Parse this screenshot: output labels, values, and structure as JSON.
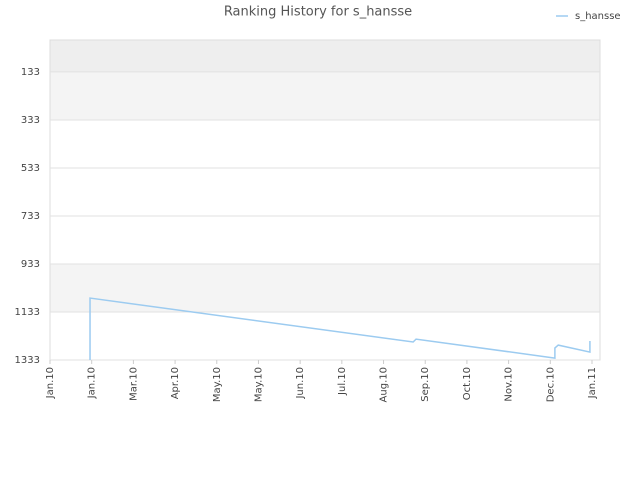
{
  "chart_data": {
    "type": "line",
    "title": "Ranking History for s_hansse",
    "x": [
      0.96,
      0.96,
      8.71,
      8.78,
      12.11,
      12.11,
      12.19,
      12.95,
      12.95
    ],
    "series": [
      {
        "name": "s_hansse",
        "color": "#9ccbf0",
        "values": [
          1333,
          1075,
          1258,
          1246,
          1325,
          1283,
          1271,
          1300,
          1254
        ]
      }
    ],
    "xlim": [
      0,
      13
    ],
    "xticks": [
      {
        "value": 0,
        "label": "Jan.10"
      },
      {
        "value": 1,
        "label": "Jan.10"
      },
      {
        "value": 2,
        "label": "Mar.10"
      },
      {
        "value": 3,
        "label": "Apr.10"
      },
      {
        "value": 4,
        "label": "May.10"
      },
      {
        "value": 5,
        "label": "May.10"
      },
      {
        "value": 6,
        "label": "Jun.10"
      },
      {
        "value": 7,
        "label": "Jul.10"
      },
      {
        "value": 8,
        "label": "Aug.10"
      },
      {
        "value": 9,
        "label": "Sep.10"
      },
      {
        "value": 10,
        "label": "Oct.10"
      },
      {
        "value": 11,
        "label": "Nov.10"
      },
      {
        "value": 12,
        "label": "Dec.10"
      },
      {
        "value": 13,
        "label": "Jan.11"
      }
    ],
    "ylim": [
      1333,
      0
    ],
    "yticks": [
      133,
      333,
      533,
      733,
      933,
      1133,
      1333
    ],
    "grid": true,
    "legend": "top-right"
  }
}
